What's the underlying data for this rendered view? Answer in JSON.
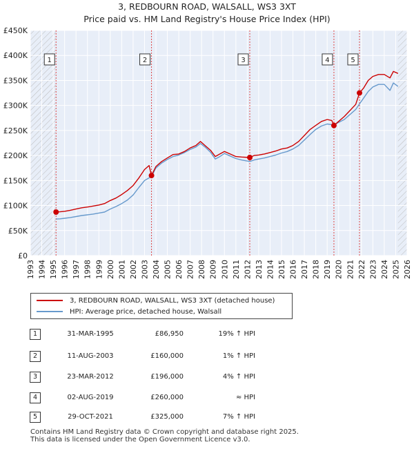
{
  "chart_data": {
    "type": "line",
    "title": "3, REDBOURN ROAD, WALSALL, WS3 3XT",
    "subtitle": "Price paid vs. HM Land Registry's House Price Index (HPI)",
    "ylim": [
      0,
      450000
    ],
    "xlim": [
      1993,
      2026
    ],
    "yticks": [
      0,
      50000,
      100000,
      150000,
      200000,
      250000,
      300000,
      350000,
      400000,
      450000
    ],
    "ytick_labels": [
      "£0",
      "£50K",
      "£100K",
      "£150K",
      "£200K",
      "£250K",
      "£300K",
      "£350K",
      "£400K",
      "£450K"
    ],
    "xticks": [
      "1993",
      "1994",
      "1995",
      "1996",
      "1997",
      "1998",
      "1999",
      "2000",
      "2001",
      "2002",
      "2003",
      "2004",
      "2005",
      "2006",
      "2007",
      "2008",
      "2009",
      "2010",
      "2011",
      "2012",
      "2013",
      "2014",
      "2015",
      "2016",
      "2017",
      "2018",
      "2019",
      "2020",
      "2021",
      "2022",
      "2023",
      "2024",
      "2025",
      "2026"
    ],
    "grid": true,
    "legend_position": "below",
    "series": [
      {
        "name": "3, REDBOURN ROAD, WALSALL, WS3 3XT (detached house)",
        "color": "#cc0000",
        "points": [
          [
            1995.25,
            86950
          ],
          [
            1995.6,
            87500
          ],
          [
            1996.0,
            88500
          ],
          [
            1996.5,
            90500
          ],
          [
            1997.0,
            93000
          ],
          [
            1997.5,
            95500
          ],
          [
            1998.0,
            97000
          ],
          [
            1998.5,
            99000
          ],
          [
            1999.0,
            101000
          ],
          [
            1999.5,
            104000
          ],
          [
            2000.0,
            110000
          ],
          [
            2000.5,
            115000
          ],
          [
            2001.0,
            122000
          ],
          [
            2001.5,
            130000
          ],
          [
            2002.0,
            140000
          ],
          [
            2002.5,
            155000
          ],
          [
            2003.0,
            172000
          ],
          [
            2003.4,
            180000
          ],
          [
            2003.61,
            160000
          ],
          [
            2004.0,
            178000
          ],
          [
            2004.5,
            188000
          ],
          [
            2005.0,
            195000
          ],
          [
            2005.5,
            202000
          ],
          [
            2006.0,
            203000
          ],
          [
            2006.5,
            208000
          ],
          [
            2007.0,
            215000
          ],
          [
            2007.5,
            220000
          ],
          [
            2007.9,
            228000
          ],
          [
            2008.3,
            220000
          ],
          [
            2008.8,
            210000
          ],
          [
            2009.2,
            198000
          ],
          [
            2009.6,
            203000
          ],
          [
            2010.0,
            208000
          ],
          [
            2010.5,
            203000
          ],
          [
            2011.0,
            198000
          ],
          [
            2011.5,
            197000
          ],
          [
            2012.22,
            196000
          ],
          [
            2012.6,
            200000
          ],
          [
            2013.0,
            201000
          ],
          [
            2013.5,
            203000
          ],
          [
            2014.0,
            206000
          ],
          [
            2014.5,
            209000
          ],
          [
            2015.0,
            213000
          ],
          [
            2015.5,
            215000
          ],
          [
            2016.0,
            220000
          ],
          [
            2016.5,
            228000
          ],
          [
            2017.0,
            240000
          ],
          [
            2017.5,
            252000
          ],
          [
            2018.0,
            260000
          ],
          [
            2018.5,
            268000
          ],
          [
            2019.0,
            272000
          ],
          [
            2019.4,
            270000
          ],
          [
            2019.59,
            260000
          ],
          [
            2020.0,
            268000
          ],
          [
            2020.5,
            278000
          ],
          [
            2021.0,
            290000
          ],
          [
            2021.5,
            302000
          ],
          [
            2021.83,
            325000
          ],
          [
            2022.2,
            335000
          ],
          [
            2022.6,
            350000
          ],
          [
            2023.0,
            358000
          ],
          [
            2023.5,
            362000
          ],
          [
            2024.0,
            362000
          ],
          [
            2024.5,
            355000
          ],
          [
            2024.8,
            368000
          ],
          [
            2025.2,
            364000
          ]
        ]
      },
      {
        "name": "HPI: Average price, detached house, Walsall",
        "color": "#6699cc",
        "points": [
          [
            1995.25,
            73000
          ],
          [
            1995.6,
            73500
          ],
          [
            1996.0,
            74500
          ],
          [
            1996.5,
            76000
          ],
          [
            1997.0,
            78000
          ],
          [
            1997.5,
            80000
          ],
          [
            1998.0,
            81500
          ],
          [
            1998.5,
            83000
          ],
          [
            1999.0,
            85000
          ],
          [
            1999.5,
            87000
          ],
          [
            2000.0,
            93000
          ],
          [
            2000.5,
            98000
          ],
          [
            2001.0,
            104000
          ],
          [
            2001.5,
            111000
          ],
          [
            2002.0,
            121000
          ],
          [
            2002.5,
            136000
          ],
          [
            2003.0,
            150000
          ],
          [
            2003.61,
            158000
          ],
          [
            2004.0,
            175000
          ],
          [
            2004.5,
            185000
          ],
          [
            2005.0,
            192000
          ],
          [
            2005.5,
            198000
          ],
          [
            2006.0,
            201000
          ],
          [
            2006.5,
            206000
          ],
          [
            2007.0,
            212000
          ],
          [
            2007.5,
            217000
          ],
          [
            2007.9,
            224000
          ],
          [
            2008.3,
            217000
          ],
          [
            2008.8,
            206000
          ],
          [
            2009.2,
            193000
          ],
          [
            2009.6,
            198000
          ],
          [
            2010.0,
            204000
          ],
          [
            2010.5,
            199000
          ],
          [
            2011.0,
            194000
          ],
          [
            2011.5,
            191000
          ],
          [
            2012.22,
            188000
          ],
          [
            2012.6,
            191000
          ],
          [
            2013.0,
            193000
          ],
          [
            2013.5,
            195000
          ],
          [
            2014.0,
            198000
          ],
          [
            2014.5,
            201000
          ],
          [
            2015.0,
            205000
          ],
          [
            2015.5,
            208000
          ],
          [
            2016.0,
            213000
          ],
          [
            2016.5,
            220000
          ],
          [
            2017.0,
            231000
          ],
          [
            2017.5,
            242000
          ],
          [
            2018.0,
            252000
          ],
          [
            2018.5,
            259000
          ],
          [
            2019.0,
            263000
          ],
          [
            2019.59,
            261000
          ],
          [
            2020.0,
            266000
          ],
          [
            2020.5,
            272000
          ],
          [
            2021.0,
            282000
          ],
          [
            2021.5,
            292000
          ],
          [
            2021.83,
            303000
          ],
          [
            2022.2,
            315000
          ],
          [
            2022.6,
            328000
          ],
          [
            2023.0,
            337000
          ],
          [
            2023.5,
            342000
          ],
          [
            2024.0,
            342000
          ],
          [
            2024.5,
            330000
          ],
          [
            2024.8,
            345000
          ],
          [
            2025.2,
            338000
          ]
        ]
      }
    ],
    "sales": [
      {
        "num": "1",
        "x": 1995.25,
        "price": 86950
      },
      {
        "num": "2",
        "x": 2003.61,
        "price": 160000
      },
      {
        "num": "3",
        "x": 2012.22,
        "price": 196000
      },
      {
        "num": "4",
        "x": 2019.59,
        "price": 260000
      },
      {
        "num": "5",
        "x": 2021.83,
        "price": 325000
      }
    ]
  },
  "legend": {
    "property": "3, REDBOURN ROAD, WALSALL, WS3 3XT (detached house)",
    "hpi": "HPI: Average price, detached house, Walsall"
  },
  "transactions": [
    {
      "num": "1",
      "date": "31-MAR-1995",
      "price": "£86,950",
      "hpi": "19% ↑ HPI"
    },
    {
      "num": "2",
      "date": "11-AUG-2003",
      "price": "£160,000",
      "hpi": "1% ↑ HPI"
    },
    {
      "num": "3",
      "date": "23-MAR-2012",
      "price": "£196,000",
      "hpi": "4% ↑ HPI"
    },
    {
      "num": "4",
      "date": "02-AUG-2019",
      "price": "£260,000",
      "hpi": "≈ HPI"
    },
    {
      "num": "5",
      "date": "29-OCT-2021",
      "price": "£325,000",
      "hpi": "7% ↑ HPI"
    }
  ],
  "footer": {
    "line1": "Contains HM Land Registry data © Crown copyright and database right 2025.",
    "line2": "This data is licensed under the Open Government Licence v3.0."
  },
  "colors": {
    "property_line": "#cc0000",
    "hpi_line": "#6699cc",
    "plot_bg": "#e8eef8",
    "grid": "#ffffff",
    "marker_line": "#dd4444"
  }
}
